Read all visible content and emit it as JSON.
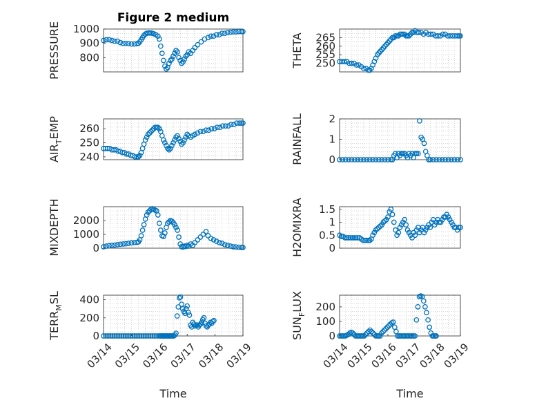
{
  "figure": {
    "title": "Figure 2 medium",
    "xlabel": "Time",
    "marker_color": "#0072BD"
  },
  "chart_data": [
    {
      "type": "scatter",
      "name": "pressure",
      "ylabel": "PRESSURE",
      "ylim": [
        700,
        1000
      ],
      "yticks": [
        800,
        900,
        1000
      ],
      "ytick_labels": [
        "800",
        "900",
        "1000"
      ],
      "xlim": [
        0,
        4
      ],
      "xticks": [],
      "xtick_labels": [],
      "x": [
        0,
        0.08,
        0.16,
        0.24,
        0.32,
        0.4,
        0.48,
        0.56,
        0.64,
        0.72,
        0.8,
        0.88,
        0.96,
        1.0,
        1.04,
        1.08,
        1.12,
        1.16,
        1.2,
        1.24,
        1.28,
        1.32,
        1.36,
        1.4,
        1.44,
        1.5,
        1.56,
        1.6,
        1.64,
        1.68,
        1.72,
        1.76,
        1.8,
        1.84,
        1.88,
        1.92,
        1.96,
        2.0,
        2.04,
        2.08,
        2.12,
        2.16,
        2.2,
        2.24,
        2.28,
        2.32,
        2.36,
        2.4,
        2.44,
        2.5,
        2.56,
        2.62,
        2.7,
        2.8,
        2.9,
        3.0,
        3.08,
        3.16,
        3.24,
        3.32,
        3.4,
        3.48,
        3.56,
        3.64,
        3.72,
        3.8,
        3.88,
        3.96,
        4.0
      ],
      "y": [
        920,
        925,
        925,
        920,
        915,
        915,
        905,
        900,
        900,
        898,
        895,
        895,
        897,
        900,
        910,
        925,
        940,
        955,
        965,
        970,
        972,
        972,
        972,
        970,
        967,
        960,
        950,
        930,
        880,
        830,
        780,
        740,
        720,
        730,
        760,
        780,
        790,
        810,
        830,
        850,
        840,
        800,
        780,
        760,
        770,
        790,
        810,
        820,
        840,
        830,
        850,
        870,
        890,
        910,
        930,
        940,
        950,
        950,
        960,
        960,
        970,
        970,
        975,
        978,
        980,
        980,
        982,
        982,
        982
      ]
    },
    {
      "type": "scatter",
      "name": "theta",
      "ylabel": "THETA",
      "ylim": [
        245,
        270
      ],
      "yticks": [
        250,
        255,
        260,
        265
      ],
      "ytick_labels": [
        "250",
        "255",
        "260",
        "265"
      ],
      "xlim": [
        0,
        4
      ],
      "xticks": [],
      "xtick_labels": [],
      "x": [
        0,
        0.08,
        0.16,
        0.24,
        0.32,
        0.4,
        0.48,
        0.56,
        0.64,
        0.72,
        0.8,
        0.88,
        0.96,
        1.0,
        1.05,
        1.1,
        1.15,
        1.2,
        1.25,
        1.3,
        1.35,
        1.4,
        1.45,
        1.5,
        1.55,
        1.6,
        1.65,
        1.7,
        1.75,
        1.8,
        1.85,
        1.9,
        1.95,
        2.0,
        2.05,
        2.1,
        2.15,
        2.2,
        2.25,
        2.3,
        2.35,
        2.4,
        2.45,
        2.5,
        2.56,
        2.62,
        2.7,
        2.78,
        2.86,
        2.94,
        3.02,
        3.1,
        3.18,
        3.26,
        3.34,
        3.42,
        3.5,
        3.58,
        3.66,
        3.74,
        3.82,
        3.9,
        3.96,
        4.0
      ],
      "y": [
        251,
        251,
        251,
        251,
        250,
        250,
        250,
        249,
        249,
        248,
        247,
        247,
        246,
        246,
        247,
        249,
        251,
        253,
        255,
        256,
        257,
        258,
        259,
        260,
        261,
        262,
        263,
        264,
        265,
        265,
        266,
        266,
        266,
        267,
        267,
        267,
        267,
        266,
        266,
        266,
        267,
        268,
        268,
        269,
        268,
        268,
        268,
        267,
        268,
        267,
        267,
        267,
        266,
        266,
        266,
        267,
        267,
        266,
        266,
        266,
        266,
        266,
        266,
        266
      ]
    },
    {
      "type": "scatter",
      "name": "air_temp",
      "ylabel_main": "AIR",
      "ylabel_sub": "T",
      "ylabel_rest": "EMP",
      "ylim": [
        238,
        267
      ],
      "yticks": [
        240,
        250,
        260
      ],
      "ytick_labels": [
        "240",
        "250",
        "260"
      ],
      "xlim": [
        0,
        4
      ],
      "xticks": [],
      "xtick_labels": [],
      "x": [
        0,
        0.06,
        0.12,
        0.18,
        0.24,
        0.3,
        0.36,
        0.42,
        0.48,
        0.54,
        0.6,
        0.66,
        0.72,
        0.78,
        0.84,
        0.9,
        0.96,
        1.0,
        1.04,
        1.08,
        1.12,
        1.16,
        1.2,
        1.24,
        1.28,
        1.32,
        1.36,
        1.4,
        1.44,
        1.48,
        1.52,
        1.56,
        1.6,
        1.64,
        1.68,
        1.72,
        1.76,
        1.8,
        1.84,
        1.88,
        1.92,
        1.96,
        2.0,
        2.04,
        2.08,
        2.12,
        2.16,
        2.2,
        2.24,
        2.28,
        2.32,
        2.36,
        2.4,
        2.44,
        2.5,
        2.56,
        2.62,
        2.7,
        2.78,
        2.86,
        2.94,
        3.02,
        3.1,
        3.18,
        3.26,
        3.34,
        3.42,
        3.5,
        3.58,
        3.66,
        3.74,
        3.82,
        3.9,
        3.96,
        4.0
      ],
      "y": [
        246,
        246,
        246,
        246,
        245,
        245,
        245,
        244,
        244,
        243,
        243,
        242,
        242,
        241,
        241,
        240,
        240,
        240,
        241,
        243,
        246,
        249,
        252,
        254,
        256,
        257,
        258,
        259,
        260,
        261,
        261,
        261,
        260,
        258,
        255,
        252,
        250,
        248,
        246,
        245,
        246,
        248,
        250,
        252,
        254,
        255,
        253,
        251,
        249,
        250,
        252,
        254,
        256,
        255,
        254,
        255,
        256,
        257,
        258,
        258,
        259,
        259,
        260,
        260,
        261,
        261,
        262,
        262,
        262,
        263,
        263,
        264,
        264,
        264,
        264
      ]
    },
    {
      "type": "scatter",
      "name": "rainfall",
      "ylabel": "RAINFALL",
      "ylim": [
        0,
        2
      ],
      "yticks": [
        0,
        1,
        2
      ],
      "ytick_labels": [
        "0",
        "1",
        "2"
      ],
      "xlim": [
        0,
        4
      ],
      "xticks": [],
      "xtick_labels": [],
      "x": [
        0,
        0.1,
        0.2,
        0.3,
        0.4,
        0.5,
        0.6,
        0.7,
        0.8,
        0.9,
        1.0,
        1.1,
        1.2,
        1.3,
        1.4,
        1.5,
        1.6,
        1.7,
        1.75,
        1.8,
        1.85,
        1.9,
        1.95,
        2.0,
        2.05,
        2.1,
        2.15,
        2.2,
        2.25,
        2.3,
        2.35,
        2.4,
        2.45,
        2.5,
        2.55,
        2.6,
        2.65,
        2.7,
        2.75,
        2.8,
        2.85,
        2.9,
        2.95,
        3.0,
        3.1,
        3.2,
        3.3,
        3.4,
        3.5,
        3.6,
        3.7,
        3.8,
        3.9,
        4.0
      ],
      "y": [
        0,
        0,
        0,
        0,
        0,
        0,
        0,
        0,
        0,
        0,
        0,
        0,
        0,
        0,
        0,
        0,
        0,
        0,
        0,
        0.2,
        0.3,
        0.1,
        0.3,
        0.2,
        0.3,
        0.3,
        0.3,
        0.2,
        0.1,
        0.3,
        0.2,
        0.3,
        0.1,
        0.3,
        0.3,
        0.3,
        1.9,
        1.1,
        1.0,
        0.8,
        0.4,
        0.2,
        0,
        0,
        0,
        0,
        0,
        0,
        0,
        0,
        0,
        0,
        0,
        0
      ]
    },
    {
      "type": "scatter",
      "name": "mixdepth",
      "ylabel": "MIXDEPTH",
      "ylim": [
        0,
        3000
      ],
      "yticks": [
        0,
        1000,
        2000
      ],
      "ytick_labels": [
        "0",
        "1000",
        "2000"
      ],
      "xlim": [
        0,
        4
      ],
      "xticks": [],
      "xtick_labels": [],
      "x": [
        0,
        0.08,
        0.16,
        0.24,
        0.32,
        0.4,
        0.48,
        0.56,
        0.64,
        0.72,
        0.8,
        0.88,
        0.96,
        1.0,
        1.04,
        1.08,
        1.12,
        1.16,
        1.2,
        1.24,
        1.28,
        1.32,
        1.36,
        1.4,
        1.44,
        1.48,
        1.52,
        1.56,
        1.6,
        1.64,
        1.68,
        1.72,
        1.76,
        1.8,
        1.84,
        1.88,
        1.92,
        1.96,
        2.0,
        2.04,
        2.08,
        2.12,
        2.16,
        2.2,
        2.24,
        2.28,
        2.32,
        2.36,
        2.4,
        2.44,
        2.5,
        2.56,
        2.62,
        2.7,
        2.78,
        2.86,
        2.94,
        3.0,
        3.08,
        3.16,
        3.24,
        3.32,
        3.4,
        3.48,
        3.56,
        3.64,
        3.72,
        3.8,
        3.88,
        3.96,
        4.0
      ],
      "y": [
        100,
        150,
        180,
        200,
        220,
        250,
        280,
        300,
        320,
        350,
        380,
        400,
        420,
        450,
        600,
        900,
        1300,
        1700,
        2100,
        2400,
        2600,
        2700,
        2800,
        2850,
        2800,
        2750,
        2700,
        2400,
        1800,
        1300,
        900,
        850,
        1100,
        1500,
        1800,
        1900,
        2000,
        1950,
        1850,
        1700,
        1500,
        1300,
        800,
        300,
        100,
        80,
        150,
        120,
        200,
        150,
        300,
        200,
        400,
        600,
        800,
        1000,
        1200,
        900,
        700,
        600,
        500,
        400,
        350,
        250,
        200,
        150,
        100,
        80,
        60,
        50,
        50
      ]
    },
    {
      "type": "scatter",
      "name": "h2omixra",
      "ylabel": "H2OMIXRA",
      "ylim": [
        0,
        1.6
      ],
      "yticks": [
        0,
        0.5,
        1,
        1.5
      ],
      "ytick_labels": [
        "0",
        "0.5",
        "1",
        "1.5"
      ],
      "xlim": [
        0,
        4
      ],
      "xticks": [],
      "xtick_labels": [],
      "x": [
        0,
        0.06,
        0.12,
        0.18,
        0.24,
        0.3,
        0.36,
        0.42,
        0.48,
        0.54,
        0.6,
        0.66,
        0.72,
        0.78,
        0.84,
        0.9,
        0.96,
        1.0,
        1.05,
        1.1,
        1.15,
        1.2,
        1.25,
        1.3,
        1.35,
        1.4,
        1.45,
        1.5,
        1.55,
        1.6,
        1.65,
        1.7,
        1.75,
        1.8,
        1.85,
        1.9,
        1.95,
        2.0,
        2.05,
        2.1,
        2.15,
        2.2,
        2.25,
        2.3,
        2.35,
        2.4,
        2.45,
        2.5,
        2.55,
        2.6,
        2.65,
        2.7,
        2.75,
        2.8,
        2.85,
        2.9,
        2.95,
        3.0,
        3.05,
        3.1,
        3.15,
        3.2,
        3.25,
        3.3,
        3.35,
        3.4,
        3.45,
        3.5,
        3.55,
        3.6,
        3.65,
        3.7,
        3.75,
        3.8,
        3.85,
        3.9,
        3.95,
        4.0
      ],
      "y": [
        0.5,
        0.45,
        0.45,
        0.4,
        0.4,
        0.4,
        0.4,
        0.4,
        0.4,
        0.4,
        0.4,
        0.4,
        0.35,
        0.3,
        0.3,
        0.3,
        0.3,
        0.3,
        0.35,
        0.5,
        0.6,
        0.7,
        0.75,
        0.8,
        0.85,
        0.9,
        1.0,
        1.05,
        1.1,
        1.2,
        1.4,
        1.5,
        1.3,
        1.0,
        0.7,
        0.5,
        0.6,
        0.8,
        0.9,
        1.0,
        1.1,
        0.9,
        0.7,
        0.6,
        0.5,
        0.4,
        0.6,
        0.5,
        0.7,
        0.8,
        0.6,
        0.7,
        0.8,
        0.6,
        0.7,
        0.8,
        0.9,
        0.8,
        1.0,
        1.1,
        0.9,
        1.0,
        1.1,
        1.0,
        1.0,
        1.1,
        1.2,
        1.2,
        1.3,
        1.2,
        1.1,
        1.0,
        0.9,
        0.8,
        0.8,
        0.7,
        0.8,
        0.8
      ]
    },
    {
      "type": "scatter",
      "name": "terr_msl",
      "ylabel_main": "TERR",
      "ylabel_sub": "M",
      "ylabel_rest": "SL",
      "ylim": [
        0,
        450
      ],
      "yticks": [
        0,
        200,
        400
      ],
      "ytick_labels": [
        "0",
        "200",
        "400"
      ],
      "xlim": [
        0,
        5
      ],
      "xticks": [
        0,
        1,
        2,
        3,
        4,
        5
      ],
      "xtick_labels": [
        "03/14",
        "03/15",
        "03/16",
        "03/17",
        "03/18",
        "03/19"
      ],
      "x": [
        0,
        0.08,
        0.16,
        0.24,
        0.32,
        0.4,
        0.48,
        0.56,
        0.64,
        0.72,
        0.8,
        0.88,
        0.96,
        1.04,
        1.12,
        1.2,
        1.28,
        1.36,
        1.44,
        1.52,
        1.6,
        1.68,
        1.76,
        1.84,
        1.92,
        2.0,
        2.04,
        2.08,
        2.12,
        2.16,
        2.2,
        2.24,
        2.28,
        2.32,
        2.36,
        2.4,
        2.44,
        2.48,
        2.52,
        2.56,
        2.6,
        2.64,
        2.68,
        2.72,
        2.76,
        2.8,
        2.84,
        2.88,
        2.92,
        2.96,
        3.0,
        3.04,
        3.08,
        3.12,
        3.16,
        3.2,
        3.24,
        3.28,
        3.32,
        3.36,
        3.4,
        3.44,
        3.48,
        3.52,
        3.56,
        3.6,
        3.64,
        3.68,
        3.72,
        3.76,
        3.8,
        3.84,
        3.88,
        3.92,
        3.96
      ],
      "y": [
        0,
        0,
        0,
        0,
        0,
        0,
        0,
        0,
        0,
        0,
        0,
        0,
        0,
        0,
        0,
        0,
        0,
        0,
        0,
        0,
        0,
        0,
        0,
        0,
        0,
        0,
        0,
        0,
        0,
        0,
        0,
        0,
        0,
        0,
        0,
        0,
        0,
        0,
        0,
        10,
        30,
        220,
        320,
        420,
        430,
        350,
        300,
        270,
        250,
        300,
        330,
        260,
        230,
        120,
        100,
        150,
        130,
        110,
        120,
        120,
        100,
        120,
        130,
        150,
        180,
        200,
        140,
        110,
        100,
        120,
        130,
        150,
        140,
        160,
        170
      ]
    },
    {
      "type": "scatter",
      "name": "sun_flux",
      "ylabel_main": "SUN",
      "ylabel_sub": "F",
      "ylabel_rest": "LUX",
      "ylim": [
        0,
        280
      ],
      "yticks": [
        0,
        100,
        200
      ],
      "ytick_labels": [
        "0",
        "100",
        "200"
      ],
      "xlim": [
        0,
        5
      ],
      "xticks": [
        0,
        1,
        2,
        3,
        4,
        5
      ],
      "xtick_labels": [
        "03/14",
        "03/15",
        "03/16",
        "03/17",
        "03/18",
        "03/19"
      ],
      "x": [
        0,
        0.06,
        0.12,
        0.18,
        0.24,
        0.3,
        0.36,
        0.42,
        0.48,
        0.54,
        0.6,
        0.66,
        0.72,
        0.78,
        0.84,
        0.9,
        0.96,
        1.02,
        1.08,
        1.14,
        1.2,
        1.26,
        1.32,
        1.38,
        1.44,
        1.5,
        1.56,
        1.62,
        1.68,
        1.74,
        1.8,
        1.86,
        1.92,
        1.98,
        2.04,
        2.1,
        2.16,
        2.22,
        2.28,
        2.34,
        2.4,
        2.46,
        2.52,
        2.58,
        2.64,
        2.7,
        2.76,
        2.82,
        2.88,
        2.94,
        3.0,
        3.06,
        3.12,
        3.18,
        3.24,
        3.3,
        3.36,
        3.42,
        3.48,
        3.54,
        3.6,
        3.66,
        3.72,
        3.78,
        3.84,
        3.9,
        3.96,
        4.0
      ],
      "y": [
        0,
        0,
        0,
        0,
        0,
        5,
        10,
        20,
        25,
        20,
        10,
        0,
        0,
        0,
        0,
        0,
        0,
        0,
        10,
        20,
        30,
        40,
        30,
        20,
        10,
        0,
        0,
        0,
        0,
        20,
        30,
        40,
        50,
        60,
        70,
        80,
        90,
        95,
        60,
        30,
        0,
        0,
        0,
        0,
        0,
        0,
        0,
        0,
        0,
        0,
        0,
        0,
        0,
        110,
        200,
        270,
        275,
        270,
        240,
        200,
        160,
        110,
        60,
        20,
        0,
        0,
        0,
        0
      ]
    }
  ]
}
